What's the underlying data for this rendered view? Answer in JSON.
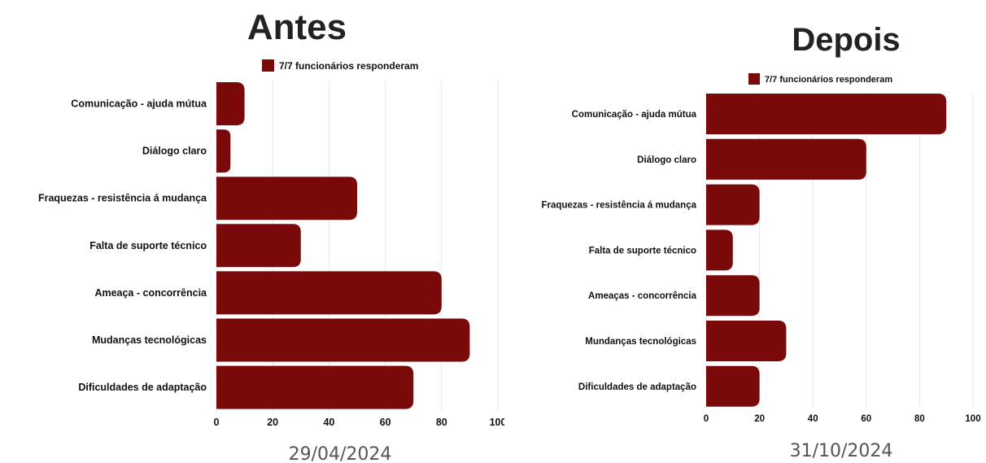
{
  "chart_data": [
    {
      "type": "bar",
      "orientation": "horizontal",
      "title": "Antes",
      "date": "29/04/2024",
      "legend": "7/7 funcionários responderam",
      "legend_position": "top",
      "color": "#7a0a0a",
      "categories": [
        "Comunicação - ajuda mútua",
        "Diálogo claro",
        "Fraquezas - resistência á mudança",
        "Falta de suporte técnico",
        "Ameaça - concorrência",
        "Mudanças tecnológicas",
        "Dificuldades de adaptação"
      ],
      "values": [
        10,
        5,
        50,
        30,
        80,
        90,
        70
      ],
      "xlim": [
        0,
        100
      ],
      "xticks": [
        "0",
        "20",
        "40",
        "60",
        "80",
        "100"
      ],
      "grid": true
    },
    {
      "type": "bar",
      "orientation": "horizontal",
      "title": "Depois",
      "date": "31/10/2024",
      "legend": "7/7 funcionários responderam",
      "legend_position": "top",
      "color": "#7a0a0a",
      "categories": [
        "Comunicação - ajuda mútua",
        "Diálogo claro",
        "Fraquezas - resistência á mudança",
        "Falta de suporte técnico",
        "Ameaças - concorrência",
        "Mundanças tecnológicas",
        "Dificuldades de adaptação"
      ],
      "values": [
        90,
        60,
        20,
        10,
        20,
        30,
        20
      ],
      "xlim": [
        0,
        100
      ],
      "xticks": [
        "0",
        "20",
        "40",
        "60",
        "80",
        "100"
      ],
      "grid": true
    }
  ]
}
